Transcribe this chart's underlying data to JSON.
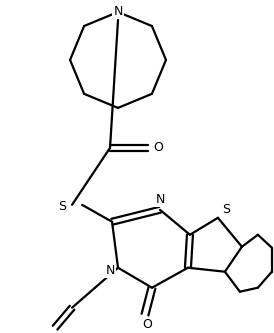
{
  "bg_color": "#ffffff",
  "line_color": "#000000",
  "line_width": 1.6,
  "figsize": [
    2.74,
    3.33
  ],
  "dpi": 100,
  "xlim": [
    0,
    274
  ],
  "ylim": [
    0,
    333
  ]
}
